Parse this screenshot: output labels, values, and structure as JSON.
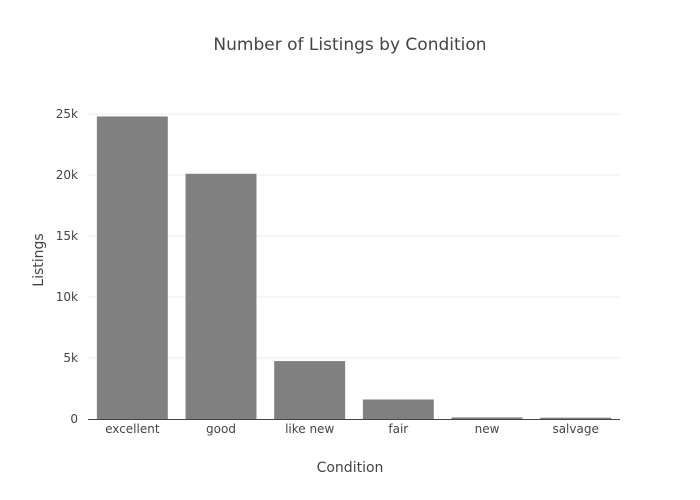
{
  "chart_data": {
    "type": "bar",
    "title": "Number of Listings by Condition",
    "xlabel": "Condition",
    "ylabel": "Listings",
    "categories": [
      "excellent",
      "good",
      "like new",
      "fair",
      "new",
      "salvage"
    ],
    "values": [
      24800,
      20100,
      4750,
      1600,
      130,
      110
    ],
    "ylim": [
      0,
      25000
    ],
    "yticks": [
      0,
      5000,
      10000,
      15000,
      20000,
      25000
    ],
    "ytick_labels": [
      "0",
      "5k",
      "10k",
      "15k",
      "20k",
      "25k"
    ],
    "grid": true,
    "bar_color": "#808080"
  }
}
